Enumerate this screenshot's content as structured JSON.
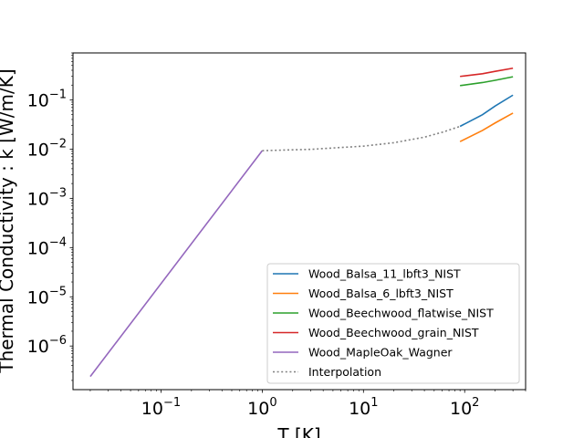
{
  "chart_data": {
    "type": "line",
    "xlabel": "T [K]",
    "ylabel": "Thermal Conductivity : k [W/m/K]",
    "x_scale": "log",
    "y_scale": "log",
    "xlim": [
      0.0135,
      400
    ],
    "ylim": [
      1.3e-07,
      0.9
    ],
    "grid": false,
    "legend_position": "lower right",
    "x_ticks": [
      {
        "value": 0.1,
        "base": "10",
        "exp": "−1"
      },
      {
        "value": 1,
        "base": "10",
        "exp": "0"
      },
      {
        "value": 10,
        "base": "10",
        "exp": "1"
      },
      {
        "value": 100,
        "base": "10",
        "exp": "2"
      }
    ],
    "y_ticks": [
      {
        "value": 1e-06,
        "base": "10",
        "exp": "−6"
      },
      {
        "value": 1e-05,
        "base": "10",
        "exp": "−5"
      },
      {
        "value": 0.0001,
        "base": "10",
        "exp": "−4"
      },
      {
        "value": 0.001,
        "base": "10",
        "exp": "−3"
      },
      {
        "value": 0.01,
        "base": "10",
        "exp": "−2"
      },
      {
        "value": 0.1,
        "base": "10",
        "exp": "−1"
      }
    ],
    "series": [
      {
        "name": "Wood_Balsa_11_lbft3_NIST",
        "color": "#1f77b4",
        "style": "solid",
        "x": [
          90,
          150,
          200,
          300
        ],
        "y": [
          0.029,
          0.05,
          0.075,
          0.125
        ]
      },
      {
        "name": "Wood_Balsa_6_lbft3_NIST",
        "color": "#ff7f0e",
        "style": "solid",
        "x": [
          90,
          150,
          200,
          300
        ],
        "y": [
          0.0142,
          0.024,
          0.034,
          0.054
        ]
      },
      {
        "name": "Wood_Beechwood_flatwise_NIST",
        "color": "#2ca02c",
        "style": "solid",
        "x": [
          90,
          150,
          200,
          300
        ],
        "y": [
          0.195,
          0.225,
          0.25,
          0.295
        ]
      },
      {
        "name": "Wood_Beechwood_grain_NIST",
        "color": "#d62728",
        "style": "solid",
        "x": [
          90,
          150,
          200,
          300
        ],
        "y": [
          0.3,
          0.34,
          0.38,
          0.44
        ]
      },
      {
        "name": "Wood_MapleOak_Wagner",
        "color": "#9467bd",
        "style": "solid",
        "x": [
          0.02,
          1
        ],
        "y": [
          2.4e-07,
          0.0093
        ]
      },
      {
        "name": "Interpolation",
        "color": "#808080",
        "style": "dotted",
        "x": [
          1,
          3,
          10,
          20,
          40,
          60,
          90
        ],
        "y": [
          0.0093,
          0.0099,
          0.0115,
          0.0135,
          0.0175,
          0.022,
          0.029
        ]
      }
    ]
  }
}
